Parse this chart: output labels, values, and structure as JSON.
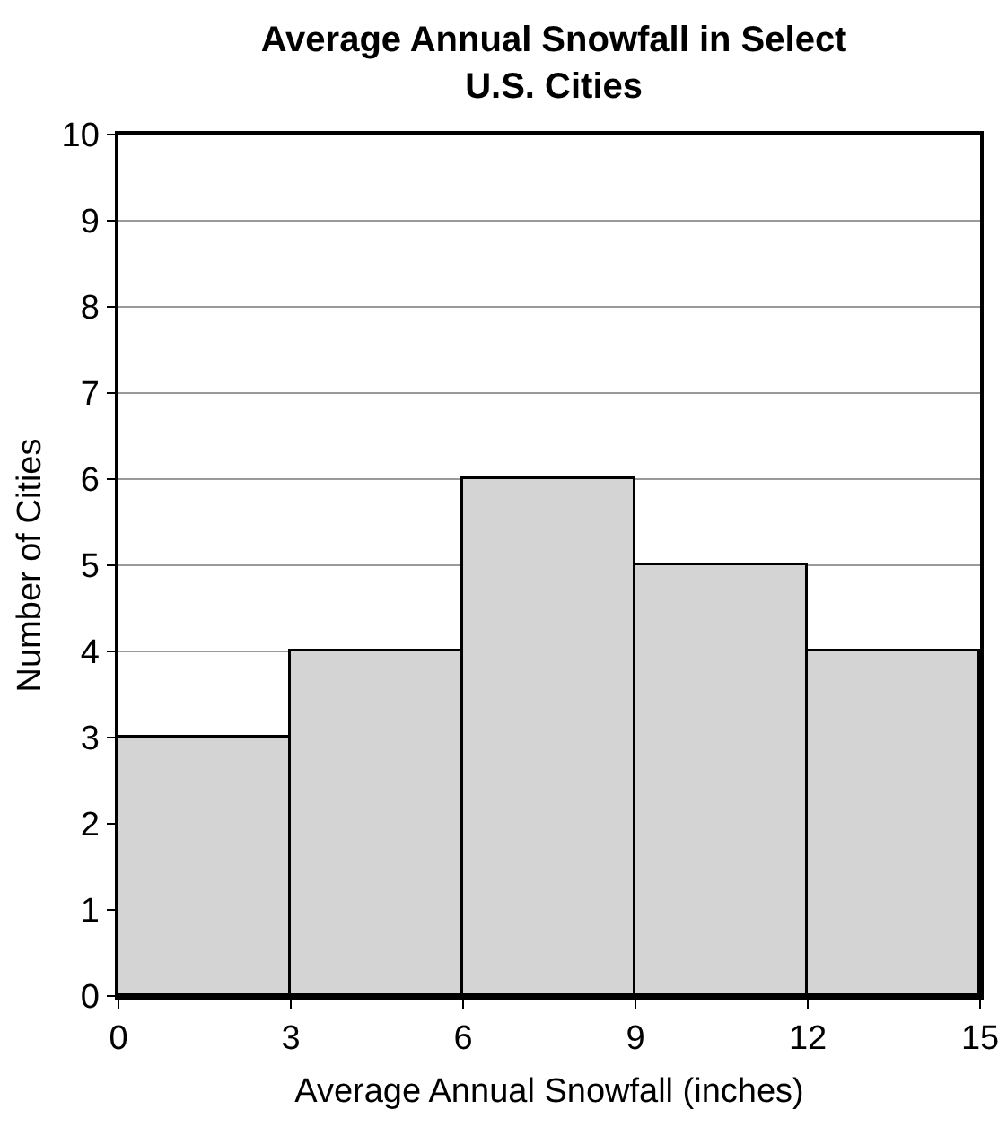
{
  "chart_data": {
    "type": "histogram",
    "title": "Average Annual Snowfall in Select U.S. Cities",
    "xlabel": "Average Annual Snowfall (inches)",
    "ylabel": "Number of Cities",
    "bins": [
      0,
      3,
      6,
      9,
      12,
      15
    ],
    "values": [
      3,
      4,
      6,
      5,
      4
    ],
    "color": "#d4d4d4",
    "xlim": [
      0,
      15
    ],
    "xticks": [
      0,
      3,
      6,
      9,
      12,
      15
    ],
    "ylim": [
      0,
      10
    ],
    "yticks": [
      0,
      1,
      2,
      3,
      4,
      5,
      6,
      7,
      8,
      9,
      10
    ],
    "grid": "y",
    "legend": false
  }
}
